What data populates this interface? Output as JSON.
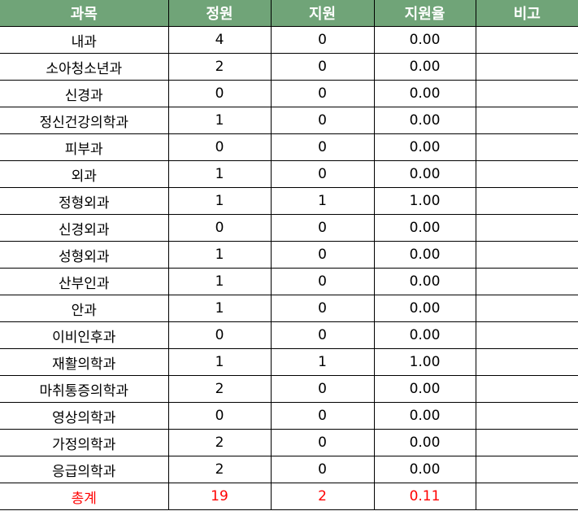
{
  "header": [
    "과목",
    "정원",
    "지원",
    "지원율",
    "비고"
  ],
  "rows": [
    [
      "내과",
      "4",
      "0",
      "0.00",
      ""
    ],
    [
      "소아청소년과",
      "2",
      "0",
      "0.00",
      ""
    ],
    [
      "신경과",
      "0",
      "0",
      "0.00",
      ""
    ],
    [
      "정신건강의학과",
      "1",
      "0",
      "0.00",
      ""
    ],
    [
      "피부과",
      "0",
      "0",
      "0.00",
      ""
    ],
    [
      "외과",
      "1",
      "0",
      "0.00",
      ""
    ],
    [
      "정형외과",
      "1",
      "1",
      "1.00",
      ""
    ],
    [
      "신경외과",
      "0",
      "0",
      "0.00",
      ""
    ],
    [
      "성형외과",
      "1",
      "0",
      "0.00",
      ""
    ],
    [
      "산부인과",
      "1",
      "0",
      "0.00",
      ""
    ],
    [
      "안과",
      "1",
      "0",
      "0.00",
      ""
    ],
    [
      "이비인후과",
      "0",
      "0",
      "0.00",
      ""
    ],
    [
      "재활의학과",
      "1",
      "1",
      "1.00",
      ""
    ],
    [
      "마취통증의학과",
      "2",
      "0",
      "0.00",
      ""
    ],
    [
      "영상의학과",
      "0",
      "0",
      "0.00",
      ""
    ],
    [
      "가정의학과",
      "2",
      "0",
      "0.00",
      ""
    ],
    [
      "응급의학과",
      "2",
      "0",
      "0.00",
      ""
    ]
  ],
  "total": [
    "총계",
    "19",
    "2",
    "0.11",
    ""
  ],
  "colors": {
    "header_bg": "#70a478",
    "total_text": "#ff0000"
  }
}
